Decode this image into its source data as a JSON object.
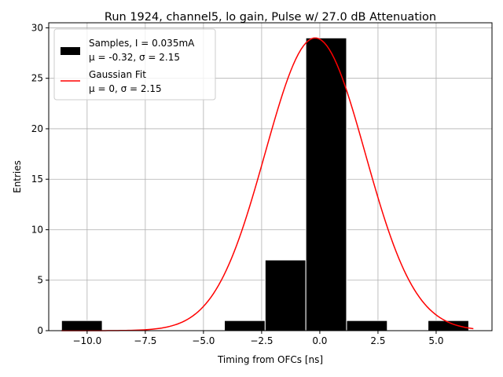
{
  "chart_data": {
    "type": "bar",
    "title": "Run 1924, channel5, lo gain, Pulse w/ 27.0 dB Attenuation",
    "xlabel": "Timing from OFCs [ns]",
    "ylabel": "Entries",
    "xlim": [
      -11.65,
      7.4
    ],
    "ylim": [
      0,
      30.5
    ],
    "grid": true,
    "xticks": [
      {
        "value": -10.0,
        "label": "−10.0"
      },
      {
        "value": -7.5,
        "label": "−7.5"
      },
      {
        "value": -5.0,
        "label": "−5.0"
      },
      {
        "value": -2.5,
        "label": "−2.5"
      },
      {
        "value": 0.0,
        "label": "0.0"
      },
      {
        "value": 2.5,
        "label": "2.5"
      },
      {
        "value": 5.0,
        "label": "5.0"
      }
    ],
    "yticks": [
      {
        "value": 0,
        "label": "0"
      },
      {
        "value": 5,
        "label": "5"
      },
      {
        "value": 10,
        "label": "10"
      },
      {
        "value": 15,
        "label": "15"
      },
      {
        "value": 20,
        "label": "20"
      },
      {
        "value": 25,
        "label": "25"
      },
      {
        "value": 30,
        "label": "30"
      }
    ],
    "histogram": {
      "name": "Samples, I = 0.035mA",
      "stats_label": "μ = -0.32, σ = 2.15",
      "color": "#000000",
      "edge_color": "#ffffff",
      "bins": [
        {
          "left": -11.1,
          "right": -9.35,
          "count": 1
        },
        {
          "left": -4.1,
          "right": -2.35,
          "count": 1
        },
        {
          "left": -2.35,
          "right": -0.6,
          "count": 7
        },
        {
          "left": -0.6,
          "right": 1.15,
          "count": 29
        },
        {
          "left": 1.15,
          "right": 2.9,
          "count": 1
        },
        {
          "left": 4.65,
          "right": 6.4,
          "count": 1
        }
      ]
    },
    "fit": {
      "name": "Gaussian Fit",
      "stats_label": "μ = 0, σ = 2.15",
      "color": "#ff0000",
      "amplitude": 29,
      "mu": -0.2,
      "sigma": 2.15,
      "x_start": -11.1,
      "x_end": 6.6
    },
    "legend_position": "top-left"
  }
}
